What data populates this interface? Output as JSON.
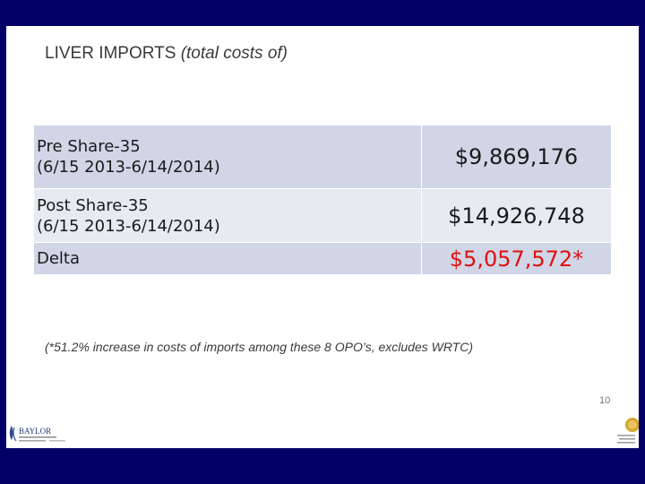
{
  "title": {
    "main": "LIVER IMPORTS",
    "italic": "(total costs of)"
  },
  "table": {
    "rows": [
      {
        "label_line1": "Pre Share-35",
        "label_line2": "(6/15 2013-6/14/2014)",
        "value": "$9,869,176"
      },
      {
        "label_line1": "Post Share-35",
        "label_line2": "(6/15 2013-6/14/2014)",
        "value": "$14,926,748"
      },
      {
        "label_line1": "Delta",
        "label_line2": "",
        "value": "$5,057,572*"
      }
    ]
  },
  "footnote": "(*51.2% increase in costs of imports among these 8 OPO’s, excludes WRTC)",
  "page_number": "10",
  "logo_left": {
    "text": "BAYLOR"
  },
  "colors": {
    "background": "#020066",
    "delta": "#e01010",
    "row_dark": "#d0d6e6",
    "row_light": "#e7eaf1"
  }
}
